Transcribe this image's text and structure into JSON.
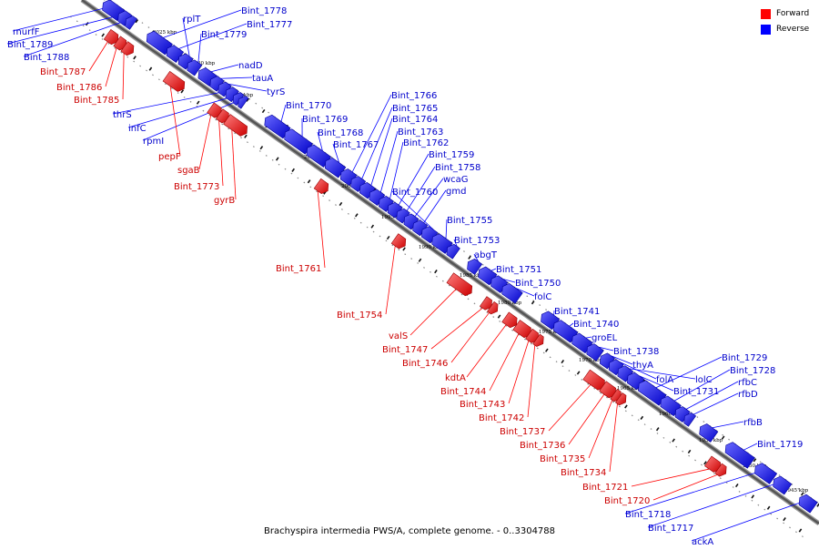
{
  "colors": {
    "forward": "#ff0000",
    "reverse": "#0000ff",
    "forward_label": "#cc0000",
    "reverse_label": "#0000cc",
    "backbone": "#555555"
  },
  "legend": {
    "forward_label": "Forward",
    "reverse_label": "Reverse"
  },
  "caption": "Brachyspira intermedia PWS/A, complete genome. - 0..3304788",
  "scale_marks": [
    "2025 kbp",
    "2020 kbp",
    "2015 kbp",
    "2010 kbp",
    "2005 kbp",
    "2000 kbp",
    "1995 kbp",
    "1990 kbp",
    "1985 kbp",
    "1980 kbp",
    "1975 kbp",
    "1970 kbp",
    "1965 kbp",
    "1960 kbp",
    "1955 kbp",
    "1950 kbp",
    "1945 kbp"
  ],
  "reverse_genes": [
    "Bint_1778",
    "Bint_1777",
    "rplT",
    "Bint_1779",
    "murfF",
    "Bint_1789",
    "Bint_1788",
    "nadD",
    "tauA",
    "tyrS",
    "Bint_1770",
    "Bint_1769",
    "Bint_1768",
    "Bint_1767",
    "thrS",
    "infC",
    "rpmI",
    "Bint_1766",
    "Bint_1765",
    "Bint_1764",
    "Bint_1763",
    "Bint_1762",
    "Bint_1759",
    "Bint_1758",
    "wcaG",
    "gmd",
    "Bint_1760",
    "Bint_1755",
    "Bint_1753",
    "abgT",
    "Bint_1751",
    "Bint_1750",
    "folC",
    "Bint_1741",
    "Bint_1740",
    "groEL",
    "Bint_1738",
    "thyA",
    "folA",
    "lolC",
    "Bint_1731",
    "Bint_1729",
    "Bint_1728",
    "rfbC",
    "rfbD",
    "rfbB",
    "Bint_1719",
    "Bint_1718",
    "Bint_1717",
    "ackA"
  ],
  "forward_genes": [
    "Bint_1787",
    "Bint_1786",
    "Bint_1785",
    "pepF",
    "sgaB",
    "Bint_1773",
    "gyrB",
    "Bint_1761",
    "Bint_1754",
    "valS",
    "Bint_1747",
    "Bint_1746",
    "kdtA",
    "Bint_1744",
    "Bint_1743",
    "Bint_1742",
    "Bint_1737",
    "Bint_1736",
    "Bint_1735",
    "Bint_1734",
    "Bint_1721",
    "Bint_1720"
  ]
}
